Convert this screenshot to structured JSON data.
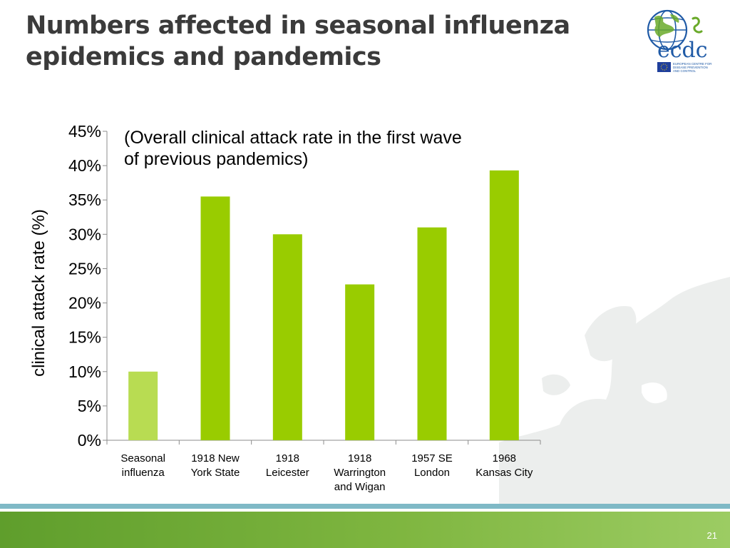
{
  "slide": {
    "title_lines": [
      "Numbers affected in seasonal influenza",
      "epidemics and pandemics"
    ],
    "page_number": "21",
    "logo": {
      "wordmark": "ecdc",
      "org_lines": [
        "EUROPEAN CENTRE FOR",
        "DISEASE PREVENTION",
        "AND CONTROL"
      ]
    }
  },
  "colors": {
    "title": "#3b3b3b",
    "bar_primary": "#99cc00",
    "bar_seasonal": "#b8dc52",
    "footer_stripe": "#7fb9c6",
    "footer_green": "#6fa93a",
    "logo_blue": "#1f5aa6",
    "logo_green": "#6aaa2a"
  },
  "chart_data": {
    "type": "bar",
    "annotation": "(Overall clinical attack rate in the first wave of previous pandemics)",
    "ylabel": "clinical attack rate (%)",
    "xlabel": "",
    "ylim": [
      0,
      45
    ],
    "y_ticks": [
      0,
      5,
      10,
      15,
      20,
      25,
      30,
      35,
      40,
      45
    ],
    "y_tick_labels": [
      "0%",
      "5%",
      "10%",
      "15%",
      "20%",
      "25%",
      "30%",
      "35%",
      "40%",
      "45%"
    ],
    "categories": [
      [
        "Seasonal",
        "influenza"
      ],
      [
        "1918 New",
        "York State"
      ],
      [
        "1918",
        "Leicester"
      ],
      [
        "1918",
        "Warrington",
        "and Wigan"
      ],
      [
        "1957 SE",
        "London"
      ],
      [
        "1968",
        "Kansas City"
      ]
    ],
    "values": [
      10,
      35.5,
      30,
      22.7,
      31,
      39.3
    ],
    "bar_color_keys": [
      "bar_seasonal",
      "bar_primary",
      "bar_primary",
      "bar_primary",
      "bar_primary",
      "bar_primary"
    ],
    "grid": false,
    "legend": "none"
  }
}
